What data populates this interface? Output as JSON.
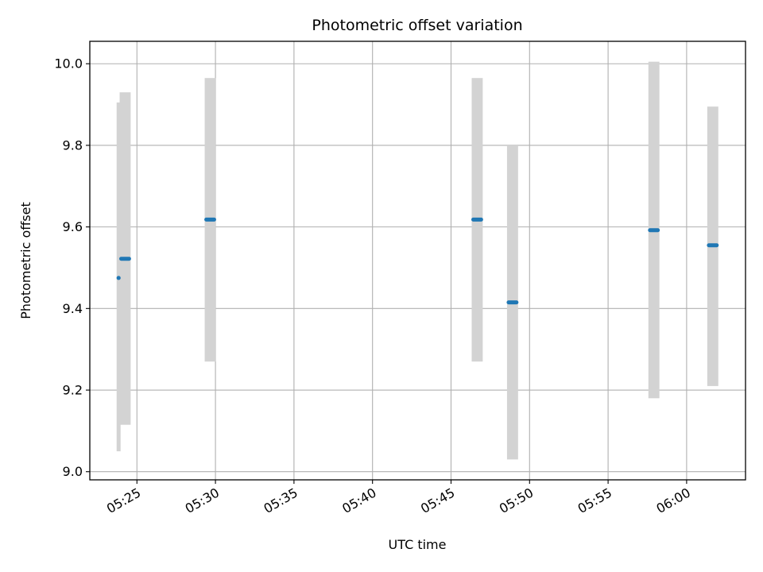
{
  "chart_data": {
    "type": "scatter",
    "title": "Photometric offset variation",
    "xlabel": "UTC time",
    "ylabel": "Photometric offset",
    "x_ticks": [
      "05:25",
      "05:30",
      "05:35",
      "05:40",
      "05:45",
      "05:50",
      "05:55",
      "06:00"
    ],
    "y_ticks": [
      "9.0",
      "9.2",
      "9.4",
      "9.6",
      "9.8",
      "10.0"
    ],
    "xlim": [
      "05:22:00",
      "06:03:45"
    ],
    "ylim": [
      8.98,
      10.055
    ],
    "grid": true,
    "marker_color": "#1f77b4",
    "errorbar_color": "#d3d3d3",
    "points": [
      {
        "x": "05:23:50",
        "y": 9.475,
        "ymin": 9.05,
        "ymax": 9.905,
        "span": [
          "05:23:50",
          "05:23:50"
        ]
      },
      {
        "x": "05:24:15",
        "y": 9.522,
        "ymin": 9.115,
        "ymax": 9.93,
        "span": [
          "05:24:00",
          "05:24:30"
        ]
      },
      {
        "x": "05:29:40",
        "y": 9.618,
        "ymin": 9.27,
        "ymax": 9.965,
        "span": [
          "05:29:25",
          "05:29:55"
        ]
      },
      {
        "x": "05:46:40",
        "y": 9.618,
        "ymin": 9.27,
        "ymax": 9.965,
        "span": [
          "05:46:25",
          "05:46:55"
        ]
      },
      {
        "x": "05:48:55",
        "y": 9.415,
        "ymin": 9.03,
        "ymax": 9.8,
        "span": [
          "05:48:40",
          "05:49:10"
        ]
      },
      {
        "x": "05:57:55",
        "y": 9.592,
        "ymin": 9.18,
        "ymax": 10.005,
        "span": [
          "05:57:40",
          "05:58:10"
        ]
      },
      {
        "x": "06:01:40",
        "y": 9.555,
        "ymin": 9.21,
        "ymax": 9.895,
        "span": [
          "06:01:25",
          "06:01:55"
        ]
      }
    ]
  }
}
